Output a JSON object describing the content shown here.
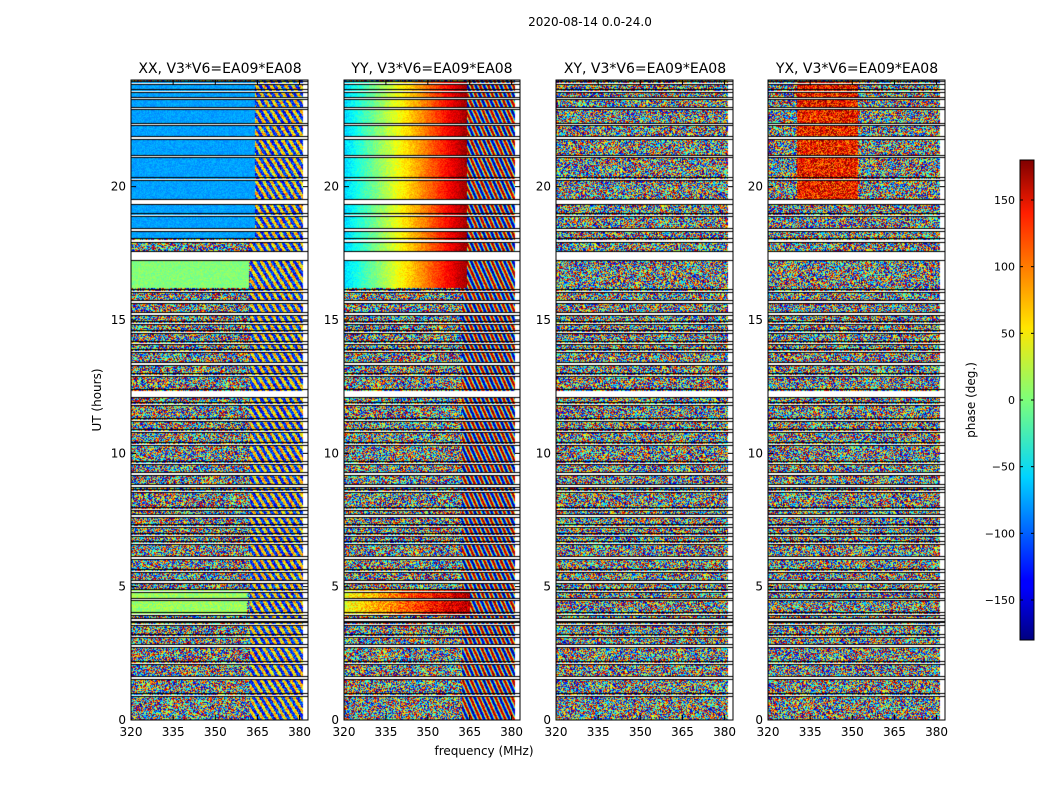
{
  "figure_title": "2020-08-14 0.0-24.0",
  "chart_data": {
    "type": "heatmap",
    "suptitle": "2020-08-14 0.0-24.0",
    "xlabel": "frequency (MHz)",
    "ylabel": "UT (hours)",
    "xlim": [
      320,
      383
    ],
    "ylim": [
      0,
      24
    ],
    "xticks": [
      320,
      335,
      350,
      365,
      380
    ],
    "yticks": [
      0,
      5,
      10,
      15,
      20
    ],
    "panels": [
      {
        "title": "XX, V3*V6=EA09*EA08",
        "pattern": "xx"
      },
      {
        "title": "YY, V3*V6=EA09*EA08",
        "pattern": "yy"
      },
      {
        "title": "XY, V3*V6=EA09*EA08",
        "pattern": "xy"
      },
      {
        "title": "YX, V3*V6=EA09*EA08",
        "pattern": "yx"
      }
    ],
    "colorbar": {
      "label": "phase (deg.)",
      "vmin": -180,
      "vmax": 180,
      "ticks": [
        -150,
        -100,
        -50,
        0,
        50,
        100,
        150
      ],
      "tick_labels": [
        "−150",
        "−100",
        "−50",
        "0",
        "50",
        "100",
        "150"
      ],
      "colormap": "jet"
    },
    "flagged_ut_ranges": [
      [
        0.9,
        0.97
      ],
      [
        1.55,
        1.62
      ],
      [
        2.1,
        2.17
      ],
      [
        2.75,
        2.82
      ],
      [
        3.1,
        3.18
      ],
      [
        3.55,
        3.63
      ],
      [
        3.72,
        3.8
      ],
      [
        3.95,
        4.0
      ],
      [
        4.5,
        4.55
      ],
      [
        4.8,
        4.87
      ],
      [
        5.15,
        5.22
      ],
      [
        5.55,
        5.62
      ],
      [
        6.05,
        6.12
      ],
      [
        6.6,
        6.67
      ],
      [
        6.9,
        6.97
      ],
      [
        7.25,
        7.3
      ],
      [
        7.62,
        7.7
      ],
      [
        7.88,
        7.95
      ],
      [
        8.55,
        8.62
      ],
      [
        8.75,
        8.82
      ],
      [
        9.2,
        9.27
      ],
      [
        9.6,
        9.67
      ],
      [
        10.3,
        10.37
      ],
      [
        10.8,
        10.87
      ],
      [
        11.2,
        11.27
      ],
      [
        11.8,
        11.87
      ],
      [
        12.1,
        12.37
      ],
      [
        12.9,
        12.97
      ],
      [
        13.3,
        13.4
      ],
      [
        13.8,
        13.87
      ],
      [
        14.1,
        14.17
      ],
      [
        14.5,
        14.57
      ],
      [
        14.85,
        14.92
      ],
      [
        15.2,
        15.27
      ],
      [
        15.65,
        15.72
      ],
      [
        16.05,
        16.12
      ],
      [
        17.25,
        17.55
      ],
      [
        17.92,
        18.02
      ],
      [
        18.35,
        18.42
      ],
      [
        18.9,
        18.96
      ],
      [
        19.35,
        19.5
      ],
      [
        20.25,
        20.31
      ],
      [
        21.1,
        21.16
      ],
      [
        21.8,
        21.87
      ],
      [
        22.3,
        22.36
      ],
      [
        22.9,
        22.96
      ],
      [
        23.28,
        23.33
      ],
      [
        23.55,
        23.62
      ],
      [
        23.85,
        23.91
      ]
    ],
    "colors": {
      "xx_smooth_phase": -78,
      "yy_gradient_phase_start": -60,
      "yy_gradient_phase_end": 170
    }
  }
}
